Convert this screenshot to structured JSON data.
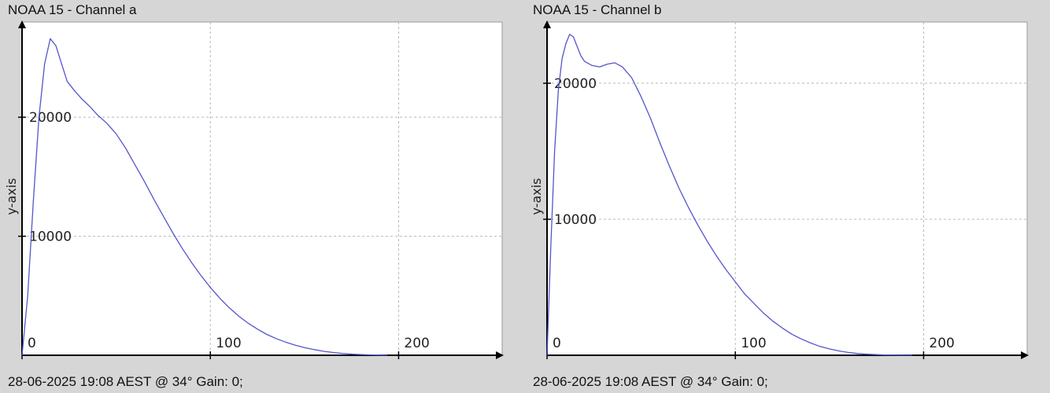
{
  "chart_data": [
    {
      "type": "line",
      "title": "NOAA 15 - Channel a",
      "footer": "28-06-2025 19:08 AEST @ 34° Gain: 0;",
      "xlabel": "",
      "ylabel": "y-axis",
      "xlim": [
        0,
        255
      ],
      "ylim": [
        0,
        28000
      ],
      "xticks": [
        0,
        100,
        200
      ],
      "yticks": [
        10000,
        20000
      ],
      "grid": true,
      "line_color": "#5555cc",
      "series": [
        {
          "x": [
            0,
            3,
            6,
            9,
            12,
            15,
            18,
            20,
            24,
            28,
            32,
            36,
            40,
            45,
            50,
            55,
            60,
            65,
            70,
            75,
            80,
            85,
            90,
            95,
            100,
            105,
            110,
            115,
            120,
            125,
            130,
            135,
            140,
            145,
            150,
            155,
            160,
            165,
            170,
            175,
            180,
            185,
            190,
            194
          ],
          "y": [
            0,
            5000,
            13000,
            20000,
            24500,
            26600,
            26000,
            25000,
            23000,
            22200,
            21500,
            20900,
            20200,
            19500,
            18600,
            17400,
            16000,
            14600,
            13100,
            11700,
            10300,
            9000,
            7800,
            6700,
            5700,
            4800,
            4000,
            3300,
            2700,
            2200,
            1750,
            1400,
            1100,
            850,
            650,
            480,
            340,
            240,
            160,
            100,
            60,
            30,
            10,
            0
          ]
        }
      ]
    },
    {
      "type": "line",
      "title": "NOAA 15 - Channel b",
      "footer": "28-06-2025 19:08 AEST @ 34° Gain: 0;",
      "xlabel": "",
      "ylabel": "y-axis",
      "xlim": [
        0,
        255
      ],
      "ylim": [
        0,
        24500
      ],
      "xticks": [
        0,
        100,
        200
      ],
      "yticks": [
        10000,
        20000
      ],
      "grid": true,
      "line_color": "#5555cc",
      "series": [
        {
          "x": [
            0,
            2,
            4,
            6,
            8,
            10,
            12,
            14,
            16,
            18,
            20,
            24,
            28,
            32,
            36,
            40,
            45,
            50,
            55,
            60,
            65,
            70,
            75,
            80,
            85,
            90,
            95,
            100,
            105,
            110,
            115,
            120,
            125,
            130,
            135,
            140,
            145,
            150,
            155,
            160,
            165,
            170,
            175,
            180,
            185,
            190,
            194
          ],
          "y": [
            0,
            8000,
            15000,
            19500,
            21800,
            22900,
            23600,
            23400,
            22700,
            22000,
            21600,
            21300,
            21200,
            21400,
            21500,
            21200,
            20400,
            19000,
            17400,
            15600,
            13900,
            12300,
            10900,
            9600,
            8400,
            7300,
            6300,
            5400,
            4500,
            3800,
            3100,
            2500,
            2000,
            1550,
            1200,
            900,
            650,
            470,
            320,
            210,
            130,
            80,
            45,
            20,
            8,
            2,
            0
          ]
        }
      ]
    }
  ]
}
